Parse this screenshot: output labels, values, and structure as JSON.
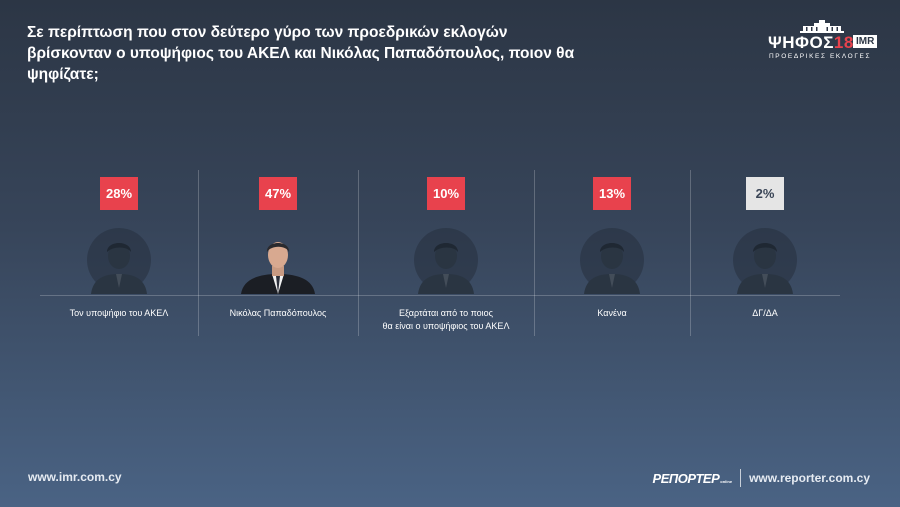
{
  "title": "Σε περίπτωση που στον δεύτερο γύρο των προεδρικών εκλογών βρίσκονταν ο υποψήφιος του ΑΚΕΛ και Νικόλας Παπαδόπουλος, ποιον θα ψηφίζατε;",
  "logo": {
    "name": "ΨΗΦΟΣ",
    "number": "18",
    "badge": "IMR",
    "subtitle": "ΠΡΟΕΔΡΙΚΕΣ ΕΚΛΟΓΕΣ"
  },
  "colors": {
    "accent": "#e8424d",
    "minor": "#e5e5e5",
    "avatar": "#2a3542"
  },
  "chart_data": {
    "type": "bar",
    "categories": [
      "Τον υποψήφιο του ΑΚΕΛ",
      "Νικόλας Παπαδόπουλος",
      "Εξαρτάται από το ποιος θα είναι ο υποψήφιος του ΑΚΕΛ",
      "Κανένα",
      "ΔΓ/ΔΑ"
    ],
    "values": [
      28,
      47,
      10,
      13,
      2
    ],
    "value_labels": [
      "28%",
      "47%",
      "10%",
      "13%",
      "2%"
    ],
    "unit": "%",
    "category_labels": [
      [
        "Τον υποψήφιο του ΑΚΕΛ"
      ],
      [
        "Νικόλας Παπαδόπουλος"
      ],
      [
        "Εξαρτάται από το ποιος",
        "θα είναι ο υποψήφιος του ΑΚΕΛ"
      ],
      [
        "Κανένα"
      ],
      [
        "ΔΓ/ΔΑ"
      ]
    ],
    "icons": [
      "person-silhouette-icon",
      "candidate-photo",
      "person-silhouette-icon",
      "person-silhouette-icon",
      "person-silhouette-icon"
    ],
    "grid": false,
    "legend": "none"
  },
  "footer": {
    "left_url": "www.imr.com.cy",
    "brand": "ΡΕΠΟΡΤΕΡ",
    "brand_sub": "online",
    "right_url": "www.reporter.com.cy"
  }
}
